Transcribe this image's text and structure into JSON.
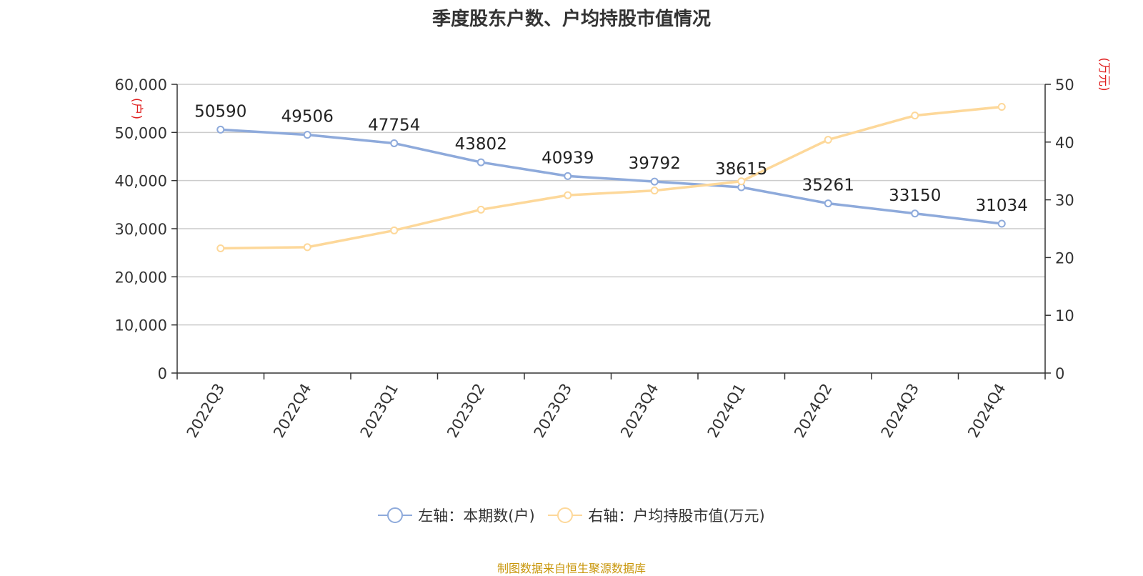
{
  "title": "季度股东户数、户均持股市值情况",
  "source": "制图数据来自恒生聚源数据库",
  "chart_data": {
    "type": "line",
    "categories": [
      "2022Q3",
      "2022Q4",
      "2023Q1",
      "2023Q2",
      "2023Q3",
      "2023Q4",
      "2024Q1",
      "2024Q2",
      "2024Q3",
      "2024Q4"
    ],
    "y_left": {
      "unit": "(户)",
      "min": 0,
      "max": 60000,
      "ticks": [
        0,
        10000,
        20000,
        30000,
        40000,
        50000,
        60000
      ],
      "tick_labels": [
        "0",
        "10,000",
        "20,000",
        "30,000",
        "40,000",
        "50,000",
        "60,000"
      ]
    },
    "y_right": {
      "unit": "(万元)",
      "min": 0,
      "max": 50,
      "ticks": [
        0,
        10,
        20,
        30,
        40,
        50
      ],
      "tick_labels": [
        "0",
        "10",
        "20",
        "30",
        "40",
        "50"
      ]
    },
    "grid": true,
    "legend_position": "bottom",
    "series": [
      {
        "name": "左轴：本期数(户)",
        "axis": "left",
        "color": "#8eaadb",
        "values": [
          50590,
          49506,
          47754,
          43802,
          40939,
          39792,
          38615,
          35261,
          33150,
          31034
        ],
        "data_labels": [
          "50590",
          "49506",
          "47754",
          "43802",
          "40939",
          "39792",
          "38615",
          "35261",
          "33150",
          "31034"
        ]
      },
      {
        "name": "右轴：户均持股市值(万元)",
        "axis": "right",
        "color": "#fdd89a",
        "values": [
          21.6,
          21.8,
          24.7,
          28.3,
          30.8,
          31.6,
          33.2,
          40.4,
          44.6,
          46.1
        ]
      }
    ]
  },
  "colors": {
    "left_unit": "#e02020",
    "right_unit": "#e02020",
    "axis": "#333333",
    "grid": "#cccccc"
  }
}
